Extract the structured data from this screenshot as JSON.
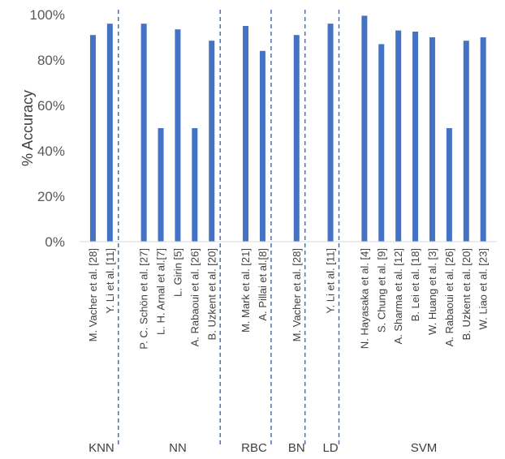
{
  "chart_data": {
    "type": "bar",
    "ylabel": "% Accuracy",
    "ylim": [
      0,
      100
    ],
    "yticks": [
      "0%",
      "20%",
      "40%",
      "60%",
      "80%",
      "100%"
    ],
    "grid": false,
    "bar_color": "#4472C4",
    "separator_color": "#4472C4",
    "groups": [
      {
        "name": "KNN",
        "categories": [
          "M. Vacher et al. [28]",
          "Y. Li et al. [11]"
        ],
        "values": [
          91,
          96
        ]
      },
      {
        "name": "NN",
        "categories": [
          "P. C. Schön et al. [27]",
          "L. H. Arnal et al.[7]",
          "L. Girin [5]",
          "A. Rabaoui et al. [26]",
          "B. Uzkent et al. [20]"
        ],
        "values": [
          96,
          50,
          93.5,
          50,
          88.5
        ]
      },
      {
        "name": "RBC",
        "categories": [
          "M. Mark et al. [21]",
          "A. Pillai  et al.[8]"
        ],
        "values": [
          95,
          84
        ]
      },
      {
        "name": "BN",
        "categories": [
          "M. Vacher et al. [28]"
        ],
        "values": [
          91
        ]
      },
      {
        "name": "LD",
        "categories": [
          "Y. Li et al. [11]"
        ],
        "values": [
          96
        ]
      },
      {
        "name": "SVM",
        "categories": [
          "N. Hayasaka et al. [4]",
          "S. Chung et al. [9]",
          "A. Sharma et al. [12]",
          "B. Lei et al. [18]",
          "W. Huang et al. [3]",
          "A. Rabaoui et al. [26]",
          "B. Uzkent et al. [20]",
          "W. Liao et al. [23]"
        ],
        "values": [
          99.5,
          87,
          93,
          92.5,
          90,
          50,
          88.5,
          90
        ]
      }
    ]
  }
}
